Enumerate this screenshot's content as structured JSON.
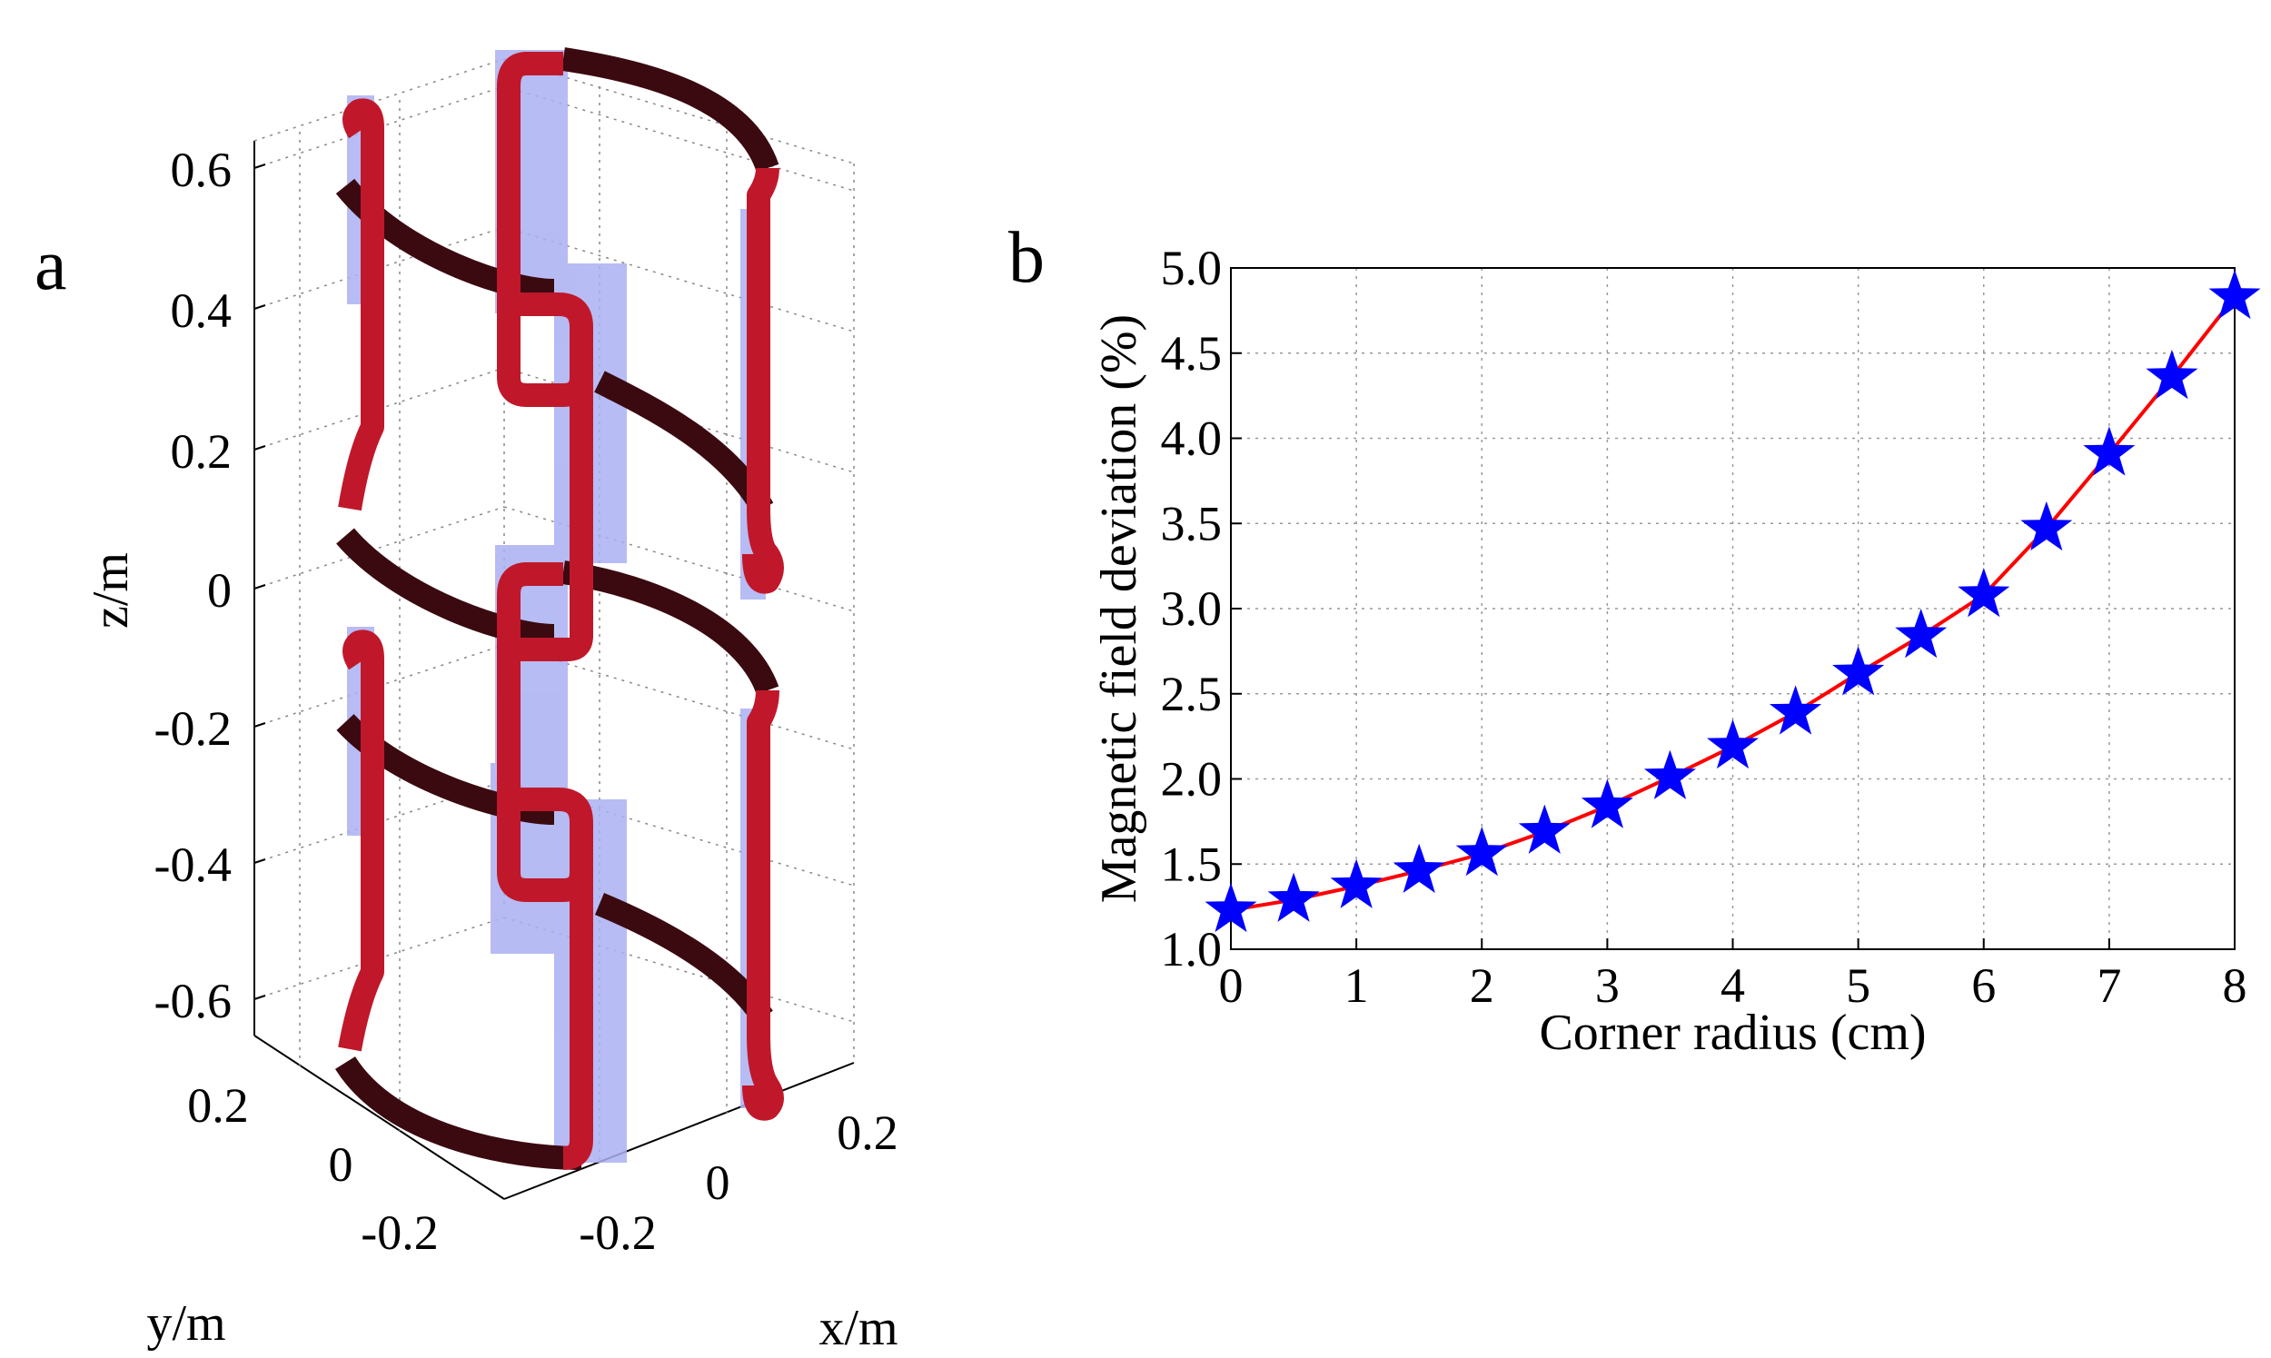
{
  "panel_a": {
    "label": "a",
    "z_axis": {
      "label": "z/m",
      "ticks": [
        "0.6",
        "0.4",
        "0.2",
        "0",
        "-0.2",
        "-0.4",
        "-0.6"
      ]
    },
    "y_axis": {
      "label": "y/m",
      "ticks": [
        "0.2",
        "0",
        "-0.2"
      ]
    },
    "x_axis": {
      "label": "x/m",
      "ticks": [
        "-0.2",
        "0",
        "0.2"
      ]
    },
    "colors": {
      "coil": "#c0182a",
      "coil_dark": "#3a0a10",
      "shadow": "#aab0f2"
    }
  },
  "panel_b": {
    "label": "b",
    "colors": {
      "line": "#ff0000",
      "marker": "#0000ff"
    }
  },
  "chart_data": {
    "type": "line",
    "title": "",
    "xlabel": "Corner radius (cm)",
    "ylabel": "Magnetic field deviation (%)",
    "xlim": [
      0,
      8
    ],
    "ylim": [
      1.0,
      5.0
    ],
    "xticks": [
      "0",
      "1",
      "2",
      "3",
      "4",
      "5",
      "6",
      "7",
      "8"
    ],
    "yticks": [
      "1.0",
      "1.5",
      "2.0",
      "2.5",
      "3.0",
      "3.5",
      "4.0",
      "4.5",
      "5.0"
    ],
    "grid": true,
    "marker": "star",
    "x": [
      0,
      0.5,
      1,
      1.5,
      2,
      2.5,
      3,
      3.5,
      4,
      4.5,
      5,
      5.5,
      6,
      6.5,
      7,
      7.5,
      8
    ],
    "values": [
      1.23,
      1.29,
      1.37,
      1.46,
      1.56,
      1.69,
      1.84,
      2.01,
      2.19,
      2.39,
      2.62,
      2.84,
      3.08,
      3.47,
      3.91,
      4.36,
      4.83
    ]
  }
}
